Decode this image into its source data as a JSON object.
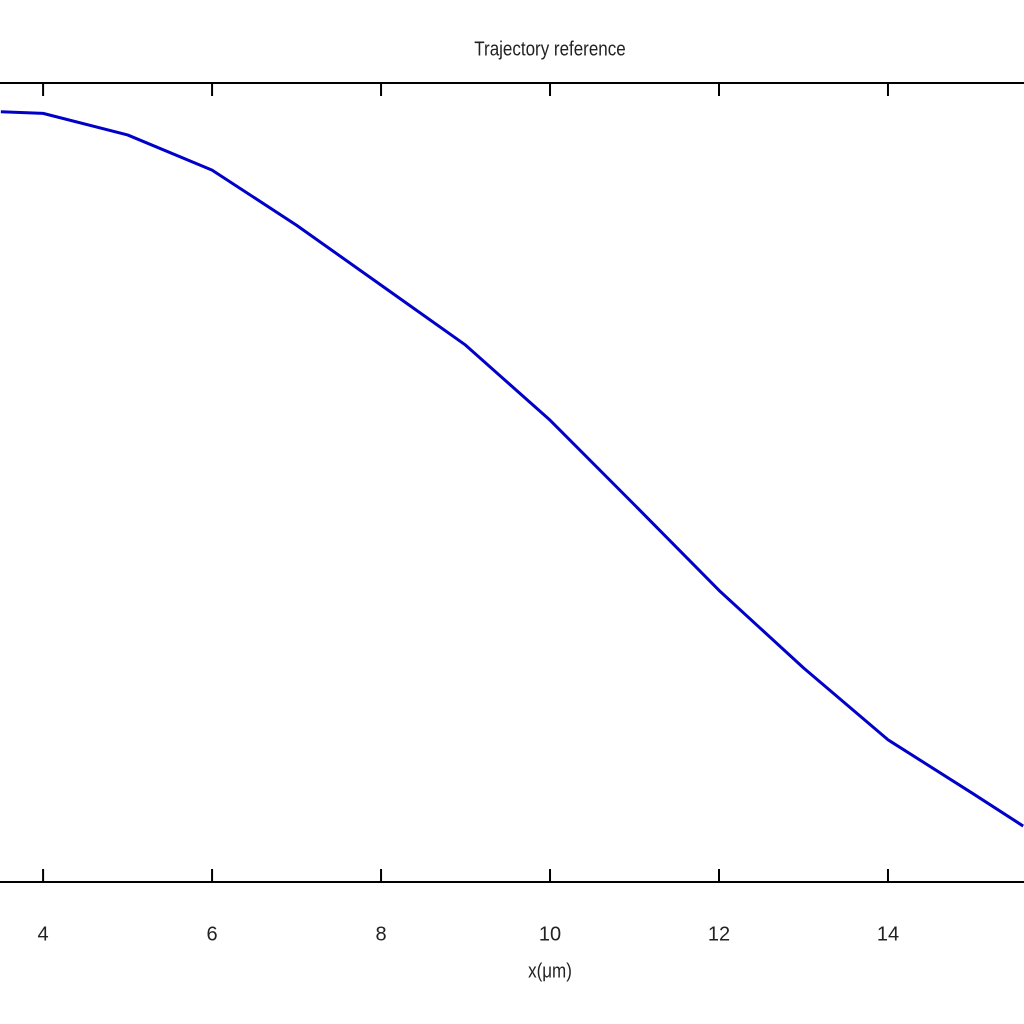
{
  "chart_data": {
    "type": "line",
    "title": "Trajectory reference",
    "x_label": "x(μm)",
    "x": [
      3.5,
      4,
      5,
      6,
      7,
      8,
      9,
      10,
      11,
      12,
      13,
      14,
      15,
      15.6
    ],
    "series": [
      {
        "color": "#0000c8",
        "values": [
          0.964,
          0.962,
          0.935,
          0.891,
          0.822,
          0.747,
          0.672,
          0.578,
          0.472,
          0.365,
          0.268,
          0.178,
          0.111,
          0.07
        ]
      }
    ],
    "xlim": [
      3.49,
      15.61
    ],
    "xticks": [
      4,
      6,
      8,
      10,
      12,
      14
    ],
    "ylim": [
      0,
      1
    ]
  }
}
